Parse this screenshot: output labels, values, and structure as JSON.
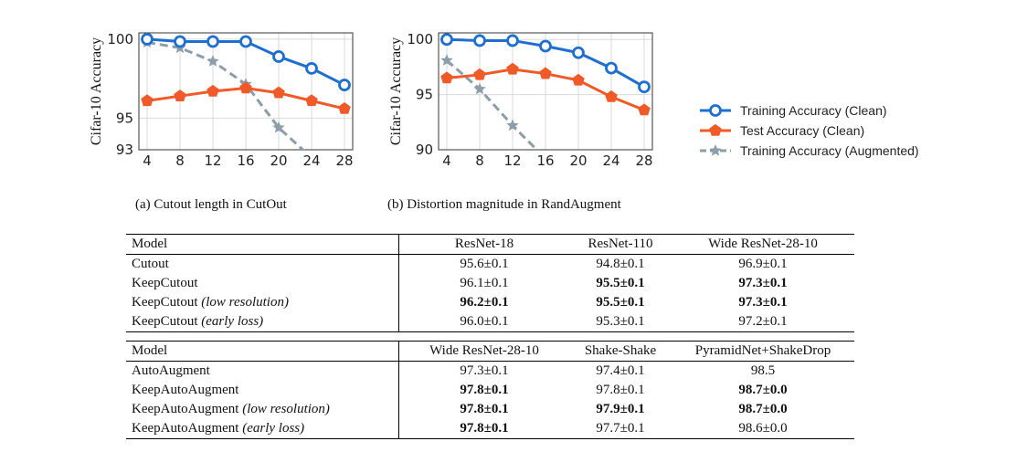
{
  "chart_data": [
    {
      "type": "line",
      "ylabel": "Cifar-10 Accuracy",
      "caption": "(a) Cutout length in CutOut",
      "x": [
        4,
        8,
        12,
        16,
        20,
        24,
        28
      ],
      "xticks": [
        "4",
        "8",
        "12",
        "16",
        "20",
        "24",
        "28"
      ],
      "yticks": [
        "93",
        "95",
        "100"
      ],
      "ylim": [
        93,
        100.4
      ],
      "xlim": [
        3,
        29
      ],
      "grid": true,
      "series": [
        {
          "name": "Training Accuracy (Clean)",
          "color": "#1f6fd1",
          "marker": "circle",
          "values": [
            100.0,
            99.85,
            99.85,
            99.85,
            98.9,
            98.15,
            97.1
          ]
        },
        {
          "name": "Test Accuracy (Clean)",
          "color": "#f05a28",
          "marker": "pentagon",
          "values": [
            96.1,
            96.4,
            96.7,
            96.9,
            96.6,
            96.1,
            95.6
          ]
        },
        {
          "name": "Training Accuracy (Augmented)",
          "color": "#8c9eaa",
          "marker": "star",
          "dashed": true,
          "values": [
            99.8,
            99.45,
            98.6,
            97.15,
            94.4,
            92.5,
            null
          ]
        }
      ]
    },
    {
      "type": "line",
      "ylabel": "Cifar-10 Accuracy",
      "caption": "(b) Distortion magnitude in RandAugment",
      "x": [
        4,
        8,
        12,
        16,
        20,
        24,
        28
      ],
      "xticks": [
        "4",
        "8",
        "12",
        "16",
        "20",
        "24",
        "28"
      ],
      "yticks": [
        "90",
        "95",
        "100"
      ],
      "ylim": [
        90,
        100.6
      ],
      "xlim": [
        3,
        29
      ],
      "grid": true,
      "series": [
        {
          "name": "Training Accuracy (Clean)",
          "color": "#1f6fd1",
          "marker": "circle",
          "values": [
            100.0,
            99.9,
            99.9,
            99.4,
            98.8,
            97.4,
            95.7
          ]
        },
        {
          "name": "Test Accuracy (Clean)",
          "color": "#f05a28",
          "marker": "pentagon",
          "values": [
            96.5,
            96.8,
            97.3,
            96.9,
            96.3,
            94.8,
            93.6
          ]
        },
        {
          "name": "Training Accuracy (Augmented)",
          "color": "#8c9eaa",
          "marker": "star",
          "dashed": true,
          "values": [
            98.1,
            95.5,
            92.2,
            89.2,
            null,
            null,
            null
          ]
        }
      ]
    }
  ],
  "legend": [
    {
      "label": "Training Accuracy (Clean)",
      "color": "#1f6fd1",
      "marker": "circle"
    },
    {
      "label": "Test Accuracy (Clean)",
      "color": "#f05a28",
      "marker": "pentagon"
    },
    {
      "label": "Training Accuracy (Augmented)",
      "color": "#8c9eaa",
      "marker": "star",
      "dashed": true
    }
  ],
  "tables": [
    {
      "headers": [
        "Model",
        "ResNet-18",
        "ResNet-110",
        "Wide ResNet-28-10"
      ],
      "rows": [
        {
          "model": "Cutout",
          "model_italic": "",
          "cells": [
            {
              "v": "95.6±0.1",
              "b": false
            },
            {
              "v": "94.8±0.1",
              "b": false
            },
            {
              "v": "96.9±0.1",
              "b": false
            }
          ]
        },
        {
          "model": "KeepCutout",
          "model_italic": "",
          "cells": [
            {
              "v": "96.1±0.1",
              "b": false
            },
            {
              "v": "95.5±0.1",
              "b": true
            },
            {
              "v": "97.3±0.1",
              "b": true
            }
          ]
        },
        {
          "model": "KeepCutout ",
          "model_italic": "(low resolution)",
          "cells": [
            {
              "v": "96.2±0.1",
              "b": true
            },
            {
              "v": "95.5±0.1",
              "b": true
            },
            {
              "v": "97.3±0.1",
              "b": true
            }
          ]
        },
        {
          "model": "KeepCutout ",
          "model_italic": "(early loss)",
          "cells": [
            {
              "v": "96.0±0.1",
              "b": false
            },
            {
              "v": "95.3±0.1",
              "b": false
            },
            {
              "v": "97.2±0.1",
              "b": false
            }
          ]
        }
      ]
    },
    {
      "headers": [
        "Model",
        "Wide ResNet-28-10",
        "Shake-Shake",
        "PyramidNet+ShakeDrop"
      ],
      "rows": [
        {
          "model": "AutoAugment",
          "model_italic": "",
          "cells": [
            {
              "v": "97.3±0.1",
              "b": false
            },
            {
              "v": "97.4±0.1",
              "b": false
            },
            {
              "v": "98.5",
              "b": false
            }
          ]
        },
        {
          "model": "KeepAutoAugment",
          "model_italic": "",
          "cells": [
            {
              "v": "97.8±0.1",
              "b": true
            },
            {
              "v": "97.8±0.1",
              "b": false
            },
            {
              "v": "98.7±0.0",
              "b": true
            }
          ]
        },
        {
          "model": "KeepAutoAugment ",
          "model_italic": "(low resolution)",
          "cells": [
            {
              "v": "97.8±0.1",
              "b": true
            },
            {
              "v": "97.9±0.1",
              "b": true
            },
            {
              "v": "98.7±0.0",
              "b": true
            }
          ]
        },
        {
          "model": "KeepAutoAugment ",
          "model_italic": "(early loss)",
          "cells": [
            {
              "v": "97.8±0.1",
              "b": true
            },
            {
              "v": "97.7±0.1",
              "b": false
            },
            {
              "v": "98.6±0.0",
              "b": false
            }
          ]
        }
      ]
    }
  ]
}
